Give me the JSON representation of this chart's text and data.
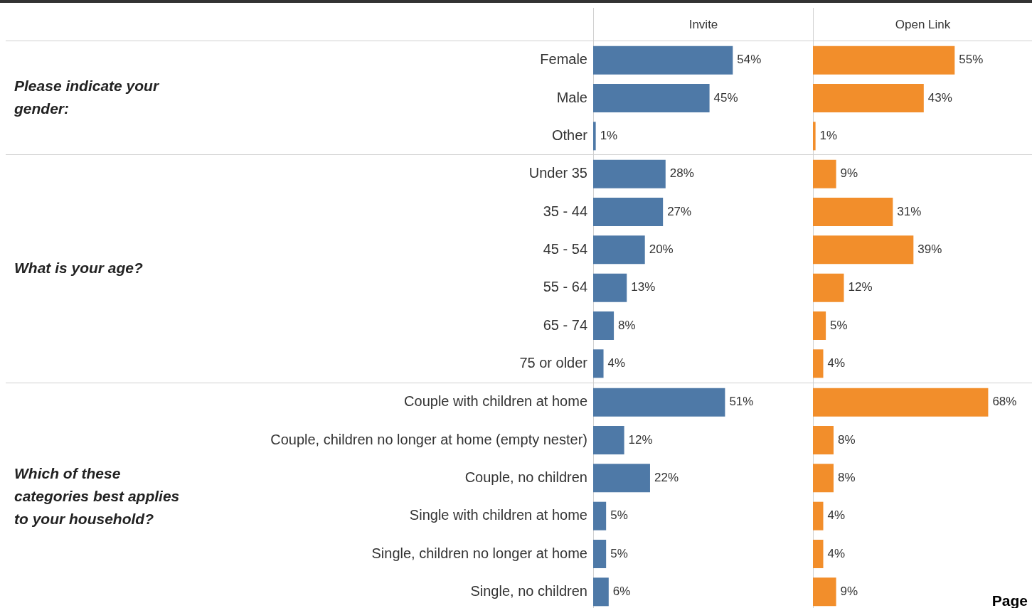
{
  "chart_data": [
    {
      "type": "bar",
      "orientation": "horizontal",
      "title": "Invite",
      "ylabel": "Please indicate your gender:",
      "tick_labels": "y",
      "categories": [
        "Female",
        "Male",
        "Other"
      ],
      "values": [
        54,
        45,
        1
      ],
      "value_labels": [
        "54%",
        "45%",
        "1%"
      ],
      "color": "#4e79a7"
    },
    {
      "type": "bar",
      "orientation": "horizontal",
      "title": "Open Link",
      "tick_labels": false,
      "categories": [
        null,
        null,
        null
      ],
      "values": [
        55,
        43,
        1
      ],
      "value_labels": [
        "55%",
        "43%",
        "1%"
      ],
      "color": "#f28e2b"
    },
    {
      "type": "bar",
      "orientation": "horizontal",
      "ylabel": "What is your age?",
      "tick_labels": "y",
      "categories": [
        "Under 35",
        "35 - 44",
        "45 - 54",
        "55 - 64",
        "65 - 74",
        "75 or older"
      ],
      "values": [
        28,
        27,
        20,
        13,
        8,
        4
      ],
      "value_labels": [
        "28%",
        "27%",
        "20%",
        "13%",
        "8%",
        "4%"
      ],
      "color": "#4e79a7"
    },
    {
      "type": "bar",
      "orientation": "horizontal",
      "tick_labels": false,
      "categories": [
        null,
        null,
        null,
        null,
        null,
        null
      ],
      "values": [
        9,
        31,
        39,
        12,
        5,
        4
      ],
      "value_labels": [
        "9%",
        "31%",
        "39%",
        "12%",
        "5%",
        "4%"
      ],
      "color": "#f28e2b"
    },
    {
      "type": "bar",
      "orientation": "horizontal",
      "ylabel": "Which of these categories best applies to your household?",
      "tick_labels": "y",
      "categories": [
        "Couple with children at home",
        "Couple, children no longer at home (empty nester)",
        "Couple, no children",
        "Single with children at home",
        "Single, children no longer at home",
        "Single, no children"
      ],
      "values": [
        51,
        12,
        22,
        5,
        5,
        6
      ],
      "value_labels": [
        "51%",
        "12%",
        "22%",
        "5%",
        "5%",
        "6%"
      ],
      "color": "#4e79a7"
    },
    {
      "type": "bar",
      "orientation": "horizontal",
      "tick_labels": false,
      "categories": [
        null,
        null,
        null,
        null,
        null,
        null
      ],
      "values": [
        68,
        8,
        8,
        4,
        4,
        9
      ],
      "value_labels": [
        "68%",
        "8%",
        "8%",
        "4%",
        "4%",
        "9%"
      ],
      "color": "#f28e2b",
      "annotations": [
        "Page"
      ]
    }
  ]
}
